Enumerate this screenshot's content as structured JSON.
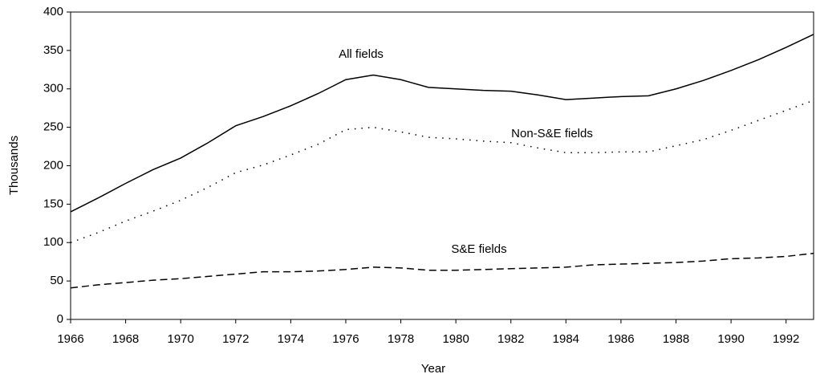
{
  "chart_data": {
    "type": "line",
    "x_label": "Year",
    "y_label": "Thousands",
    "x": [
      1966,
      1967,
      1968,
      1969,
      1970,
      1971,
      1972,
      1973,
      1974,
      1975,
      1976,
      1977,
      1978,
      1979,
      1980,
      1981,
      1982,
      1983,
      1984,
      1985,
      1986,
      1987,
      1988,
      1989,
      1990,
      1991,
      1992,
      1993
    ],
    "series": [
      {
        "name": "All fields",
        "color": "#000000",
        "dash": "solid",
        "values": [
          140,
          158,
          177,
          195,
          210,
          230,
          252,
          264,
          278,
          294,
          312,
          318,
          312,
          302,
          300,
          298,
          297,
          292,
          286,
          288,
          290,
          291,
          300,
          311,
          324,
          338,
          354,
          371
        ]
      },
      {
        "name": "Non-S&E fields",
        "color": "#000000",
        "dash": "dotted",
        "values": [
          100,
          113,
          128,
          141,
          155,
          172,
          191,
          201,
          214,
          228,
          247,
          250,
          244,
          237,
          235,
          232,
          230,
          223,
          217,
          217,
          218,
          218,
          226,
          234,
          246,
          259,
          272,
          285
        ]
      },
      {
        "name": "S&E fields",
        "color": "#000000",
        "dash": "dashed",
        "values": [
          41,
          45,
          48,
          51,
          53,
          56,
          59,
          62,
          62,
          63,
          65,
          68,
          67,
          64,
          64,
          65,
          66,
          67,
          68,
          71,
          72,
          73,
          74,
          76,
          79,
          80,
          82,
          86
        ]
      }
    ],
    "xlim": [
      1966,
      1993
    ],
    "xticks": [
      1966,
      1968,
      1970,
      1972,
      1974,
      1976,
      1978,
      1980,
      1982,
      1984,
      1986,
      1988,
      1990,
      1992
    ],
    "ylim": [
      0,
      400
    ],
    "yticks": [
      0,
      50,
      100,
      150,
      200,
      250,
      300,
      350,
      400
    ],
    "grid": false
  }
}
